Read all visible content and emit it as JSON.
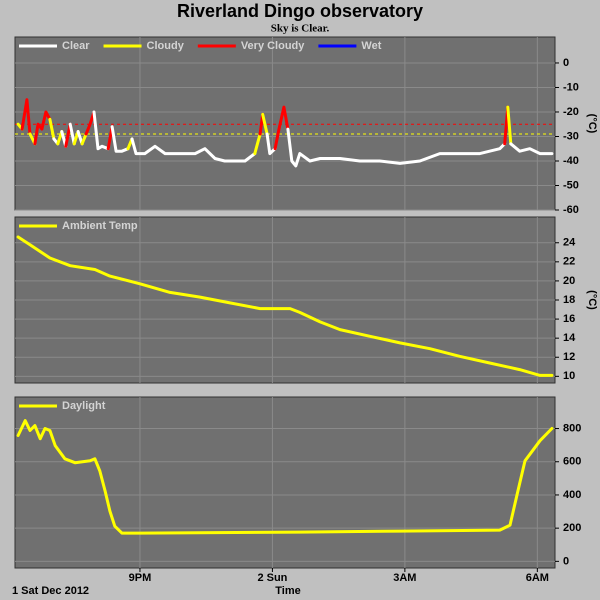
{
  "title": "Riverland Dingo observatory",
  "subtitle": "Sky is Clear.",
  "date_label": "1 Sat Dec 2012",
  "x_label": "Time",
  "chart_data": [
    {
      "type": "line",
      "y_label": "(°C)",
      "xlim": [
        18.17,
        30.4
      ],
      "xticks": [
        21,
        24,
        27,
        30
      ],
      "show_x_tick_labels": false,
      "ylim": [
        -60,
        10.6
      ],
      "yticks": [
        0,
        -10,
        -20,
        -30,
        -40,
        -50,
        -60
      ],
      "grid": true,
      "thresholds": [
        {
          "value": -25,
          "color": "#ff0000"
        },
        {
          "value": -29,
          "color": "#ffff00"
        }
      ],
      "x": [
        18.24,
        18.33,
        18.44,
        18.51,
        18.62,
        18.69,
        18.78,
        18.87,
        18.96,
        19.05,
        19.14,
        19.23,
        19.32,
        19.42,
        19.51,
        19.6,
        19.69,
        19.78,
        19.87,
        19.96,
        20.05,
        20.14,
        20.28,
        20.37,
        20.46,
        20.59,
        20.73,
        20.82,
        20.91,
        21.11,
        21.34,
        21.57,
        21.79,
        22.02,
        22.25,
        22.47,
        22.7,
        22.92,
        23.15,
        23.38,
        23.6,
        23.72,
        23.78,
        23.88,
        23.94,
        24.06,
        24.15,
        24.26,
        24.35,
        24.44,
        24.53,
        24.62,
        24.85,
        25.08,
        25.53,
        25.98,
        26.43,
        26.89,
        27.34,
        27.79,
        28.24,
        28.7,
        29.15,
        29.26,
        29.33,
        29.4,
        29.6,
        29.83,
        30.06,
        30.33
      ],
      "series": [
        {
          "name": "Clear",
          "color": "#ffffff",
          "values": [
            null,
            null,
            null,
            null,
            null,
            null,
            null,
            null,
            null,
            null,
            -33,
            null,
            -34,
            null,
            -33,
            null,
            -33,
            null,
            null,
            null,
            -35,
            -34,
            -35,
            null,
            -36,
            -36,
            -35,
            null,
            -37,
            -37,
            -34,
            -37,
            -37,
            -37,
            -37,
            -35,
            -39,
            -40,
            -40,
            -40,
            -37,
            null,
            null,
            null,
            -37,
            -35,
            null,
            null,
            null,
            -40,
            -42,
            -37,
            -40,
            -39,
            -39,
            -40,
            -40,
            -41,
            -40,
            -37,
            -37,
            -37,
            -35,
            -33,
            null,
            null,
            -36,
            -35,
            -37,
            -37
          ]
        },
        {
          "name": "Cloudy",
          "color": "#ffff00",
          "values": [
            -25,
            -27,
            null,
            null,
            -33,
            null,
            null,
            null,
            null,
            -31,
            null,
            -28,
            null,
            null,
            null,
            -28,
            null,
            -29,
            null,
            null,
            null,
            null,
            null,
            null,
            null,
            null,
            null,
            -31,
            null,
            null,
            null,
            null,
            null,
            null,
            null,
            null,
            null,
            null,
            null,
            null,
            null,
            -29,
            null,
            -29,
            null,
            null,
            null,
            null,
            null,
            null,
            null,
            null,
            null,
            null,
            null,
            null,
            null,
            null,
            null,
            null,
            null,
            null,
            null,
            null,
            null,
            -33,
            null,
            null,
            null,
            null
          ]
        },
        {
          "name": "Very Cloudy",
          "color": "#ff0000",
          "values": [
            null,
            null,
            -15,
            -29,
            null,
            -25,
            -27,
            -20,
            -23,
            null,
            null,
            null,
            null,
            -25,
            null,
            null,
            null,
            null,
            -25,
            -20,
            null,
            null,
            null,
            -26,
            null,
            null,
            null,
            null,
            null,
            null,
            null,
            null,
            null,
            null,
            null,
            null,
            null,
            null,
            null,
            null,
            null,
            null,
            -21,
            null,
            null,
            null,
            -27,
            -18,
            -27,
            null,
            null,
            null,
            null,
            null,
            null,
            null,
            null,
            null,
            null,
            null,
            null,
            null,
            null,
            null,
            -18,
            null,
            null,
            null,
            null,
            null
          ]
        },
        {
          "name": "Wet",
          "color": "#0000ff",
          "values": [
            null,
            null,
            null,
            null,
            null,
            null,
            null,
            null,
            null,
            null,
            null,
            null,
            null,
            null,
            null,
            null,
            null,
            null,
            null,
            null,
            null,
            null,
            null,
            null,
            null,
            null,
            null,
            null,
            null,
            null,
            null,
            null,
            null,
            null,
            null,
            null,
            null,
            null,
            null,
            null,
            null,
            null,
            null,
            null,
            null,
            null,
            null,
            null,
            null,
            null,
            null,
            null,
            null,
            null,
            null,
            null,
            null,
            null,
            null,
            null,
            null,
            null,
            null,
            null,
            null,
            null,
            null,
            null,
            null,
            null
          ]
        }
      ]
    },
    {
      "type": "line",
      "y_label": "(°C)",
      "xlim": [
        18.17,
        30.4
      ],
      "xticks": [
        21,
        24,
        27,
        30
      ],
      "show_x_tick_labels": false,
      "ylim": [
        9.3,
        26.7
      ],
      "yticks": [
        24,
        22,
        20,
        18,
        16,
        14,
        12,
        10
      ],
      "grid": true,
      "x": [
        18.24,
        18.51,
        18.96,
        19.42,
        19.98,
        20.32,
        21.0,
        21.68,
        22.36,
        23.04,
        23.72,
        24.4,
        24.62,
        25.08,
        25.53,
        26.21,
        26.89,
        27.57,
        28.24,
        28.92,
        29.6,
        30.06,
        30.33
      ],
      "series": [
        {
          "name": "Ambient Temp",
          "color": "#ffff00",
          "values": [
            24.6,
            23.8,
            22.4,
            21.6,
            21.2,
            20.5,
            19.7,
            18.8,
            18.3,
            17.7,
            17.1,
            17.1,
            16.7,
            15.7,
            14.9,
            14.2,
            13.5,
            12.9,
            12.1,
            11.4,
            10.7,
            10.1,
            10.1
          ]
        }
      ]
    },
    {
      "type": "line",
      "xlim": [
        18.17,
        30.4
      ],
      "xticks": [
        {
          "value": 21,
          "label": "9PM"
        },
        {
          "value": 24,
          "label": "2 Sun"
        },
        {
          "value": 27,
          "label": "3AM"
        },
        {
          "value": 30,
          "label": "6AM"
        }
      ],
      "show_x_tick_labels": true,
      "ylim": [
        -40,
        990
      ],
      "yticks": [
        800,
        600,
        400,
        200,
        0
      ],
      "grid": true,
      "x": [
        18.24,
        18.4,
        18.51,
        18.62,
        18.74,
        18.85,
        18.96,
        19.08,
        19.3,
        19.53,
        19.87,
        19.98,
        20.09,
        20.21,
        20.32,
        20.43,
        20.59,
        21.0,
        24.62,
        26.89,
        29.15,
        29.38,
        29.56,
        29.72,
        30.06,
        30.33
      ],
      "series": [
        {
          "name": "Daylight",
          "color": "#ffff00",
          "values": [
            758,
            848,
            788,
            818,
            739,
            800,
            788,
            697,
            618,
            594,
            606,
            618,
            545,
            424,
            303,
            212,
            170,
            170,
            176,
            182,
            188,
            218,
            424,
            606,
            727,
            800
          ]
        }
      ]
    }
  ]
}
